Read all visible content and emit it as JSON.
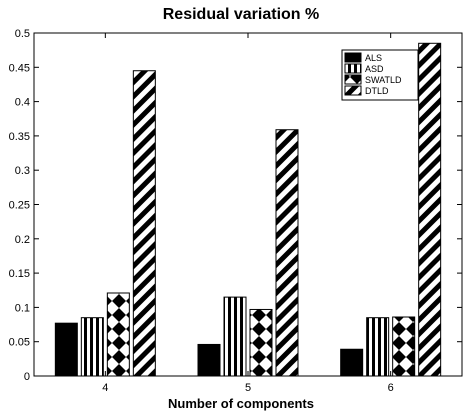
{
  "chart_data": {
    "type": "bar",
    "title": "Residual variation %",
    "xlabel": "Number of components",
    "ylabel": "",
    "categories": [
      "4",
      "5",
      "6"
    ],
    "ylim": [
      0,
      0.5
    ],
    "yticks": [
      "0",
      "0.05",
      "0.1",
      "0.15",
      "0.2",
      "0.25",
      "0.3",
      "0.35",
      "0.4",
      "0.45",
      "0.5"
    ],
    "grid": false,
    "legend_position": "top-right",
    "series": [
      {
        "name": "ALS",
        "pattern": "solid",
        "values": [
          0.077,
          0.046,
          0.039
        ]
      },
      {
        "name": "ASD",
        "pattern": "vertical-stripes",
        "values": [
          0.085,
          0.115,
          0.085
        ]
      },
      {
        "name": "SWATLD",
        "pattern": "diamond-checker",
        "values": [
          0.121,
          0.097,
          0.086
        ]
      },
      {
        "name": "DTLD",
        "pattern": "diagonal-stripes",
        "values": [
          0.445,
          0.359,
          0.485
        ]
      }
    ],
    "colors": {
      "ink": "#000000",
      "background": "#ffffff"
    }
  }
}
